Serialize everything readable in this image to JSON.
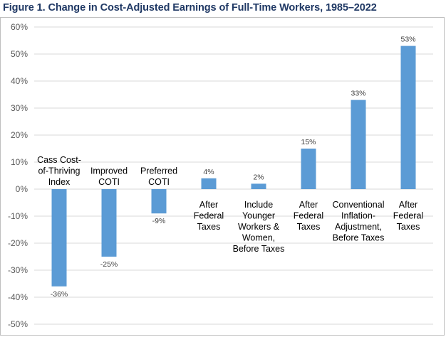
{
  "title": "Figure 1. Change in Cost-Adjusted Earnings of Full-Time Workers, 1985–2022",
  "chart_data": {
    "type": "bar",
    "title": "Figure 1. Change in Cost-Adjusted Earnings of Full-Time Workers, 1985–2022",
    "categories": [
      "Cass Cost-of-Thriving Index",
      "Improved COTI",
      "Preferred COTI",
      "After Federal Taxes",
      "Include Younger Workers & Women, Before Taxes",
      "After Federal Taxes",
      "Conventional Inflation-Adjustment, Before Taxes",
      "After Federal Taxes"
    ],
    "category_lines": [
      [
        "Cass Cost-",
        "of-Thriving",
        "Index"
      ],
      [
        "Improved",
        "COTI"
      ],
      [
        "Preferred",
        "COTI"
      ],
      [
        "After",
        "Federal",
        "Taxes"
      ],
      [
        "Include",
        "Younger",
        "Workers &",
        "Women,",
        "Before Taxes"
      ],
      [
        "After",
        "Federal",
        "Taxes"
      ],
      [
        "Conventional",
        "Inflation-",
        "Adjustment,",
        "Before Taxes"
      ],
      [
        "After",
        "Federal",
        "Taxes"
      ]
    ],
    "values": [
      -36,
      -25,
      -9,
      4,
      2,
      15,
      33,
      53
    ],
    "data_labels": [
      "-36%",
      "-25%",
      "-9%",
      "4%",
      "2%",
      "15%",
      "33%",
      "53%"
    ],
    "y_ticks": [
      "60%",
      "50%",
      "40%",
      "30%",
      "20%",
      "10%",
      "0%",
      "-10%",
      "-20%",
      "-30%",
      "-40%",
      "-50%"
    ],
    "ylim": [
      -50,
      60
    ],
    "grid": true,
    "bar_color": "#5b9bd5",
    "grid_color": "#d9d9d9"
  }
}
